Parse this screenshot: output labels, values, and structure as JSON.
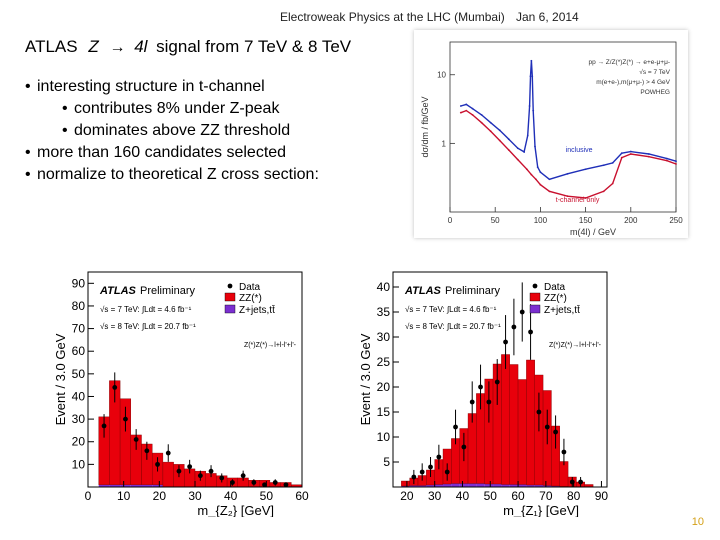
{
  "header": {
    "talk": "Electroweak Physics at the LHC (Mumbai)",
    "date": "Jan 6, 2014"
  },
  "title": {
    "prefix": "ATLAS",
    "z": "Z",
    "arrow": "→",
    "fourl": "4l",
    "suffix": "signal from 7 TeV & 8 TeV"
  },
  "bullets": [
    {
      "level": 1,
      "text": "interesting structure in t-channel"
    },
    {
      "level": 2,
      "text": "contributes 8% under Z-peak"
    },
    {
      "level": 2,
      "text": "dominates above ZZ threshold"
    },
    {
      "level": 1,
      "text": "more than 160 candidates selected"
    },
    {
      "level": 1,
      "text": "normalize to theoretical Z cross section:"
    }
  ],
  "page_number": "10",
  "chart_data": [
    {
      "type": "line",
      "xlabel": "m(4l) / GeV",
      "ylabel": "dσ/dm / fb/GeV",
      "xlim": [
        0,
        250
      ],
      "ylim_log": [
        0.1,
        30
      ],
      "x_ticks": [
        "0",
        "50",
        "100",
        "150",
        "200",
        "250"
      ],
      "y_ticks": [
        "10",
        "1"
      ],
      "legend": [
        "pp → Z/Z(*)Z(*) → e+e-μ+μ-",
        "√s = 7 TeV",
        "m(e+e-),m(μ+μ-) > 4 GeV",
        "POWHEG"
      ],
      "annotations": [
        "inclusive",
        "t-channel only"
      ],
      "series": [
        {
          "name": "inclusive",
          "color": "#1f2fb8",
          "x": [
            12,
            18,
            25,
            35,
            45,
            55,
            65,
            75,
            82,
            86,
            88,
            89,
            90,
            91,
            92,
            94,
            97,
            100,
            110,
            130,
            150,
            170,
            180,
            190,
            200,
            220,
            240,
            250
          ],
          "y": [
            3.5,
            3.7,
            3.2,
            2.6,
            2.0,
            1.55,
            1.15,
            0.85,
            0.75,
            1.3,
            3.5,
            9.5,
            16,
            9.5,
            3,
            0.9,
            0.45,
            0.38,
            0.3,
            0.36,
            0.42,
            0.48,
            0.52,
            0.72,
            0.76,
            0.7,
            0.6,
            0.55
          ]
        },
        {
          "name": "t-channel only",
          "color": "#c8102e",
          "x": [
            12,
            18,
            25,
            35,
            45,
            55,
            65,
            75,
            85,
            90,
            95,
            100,
            110,
            130,
            150,
            170,
            180,
            190,
            200,
            220,
            240,
            250
          ],
          "y": [
            2.8,
            3.0,
            2.6,
            2.0,
            1.5,
            1.1,
            0.8,
            0.58,
            0.42,
            0.35,
            0.3,
            0.25,
            0.2,
            0.17,
            0.16,
            0.2,
            0.26,
            0.62,
            0.7,
            0.64,
            0.56,
            0.5
          ]
        }
      ]
    },
    {
      "type": "bar",
      "title": "ATLAS Preliminary",
      "xlabel": "m_{Z₂} [GeV]",
      "ylabel": "Event / 3.0 GeV",
      "xlim": [
        0,
        60
      ],
      "ylim": [
        0,
        95
      ],
      "x_ticks": [
        "0",
        "10",
        "20",
        "30",
        "40",
        "50",
        "60"
      ],
      "y_ticks": [
        "10",
        "20",
        "30",
        "40",
        "50",
        "60",
        "70",
        "80",
        "90"
      ],
      "legend": [
        "Data",
        "ZZ(*)",
        "Z+jets,tt̄"
      ],
      "labels": [
        "√s = 7 TeV: ∫Ldt = 4.6 fb⁻¹",
        "√s = 8 TeV: ∫Ldt = 20.7 fb⁻¹",
        "Z(*)Z(*)→l+l-l'+l'-"
      ],
      "colors": {
        "zz": "#e8000b",
        "zjets": "#7b2fd0",
        "data": "#000000"
      },
      "bin_edges": [
        3,
        6,
        9,
        12,
        15,
        18,
        21,
        24,
        27,
        30,
        33,
        36,
        39,
        42,
        45,
        48,
        51,
        54,
        57,
        60
      ],
      "zz": [
        30,
        46,
        38,
        22,
        18,
        14,
        11,
        10,
        8,
        7,
        6,
        5,
        4,
        4,
        3,
        3,
        2,
        2,
        1
      ],
      "zjets": [
        1,
        1,
        1,
        1,
        1,
        1,
        0,
        0,
        0,
        0,
        0,
        0,
        0,
        0,
        0,
        0,
        0,
        0,
        0
      ],
      "data": [
        {
          "x": 4.5,
          "y": 27
        },
        {
          "x": 7.5,
          "y": 44
        },
        {
          "x": 10.5,
          "y": 30
        },
        {
          "x": 13.5,
          "y": 21
        },
        {
          "x": 16.5,
          "y": 16
        },
        {
          "x": 19.5,
          "y": 10
        },
        {
          "x": 22.5,
          "y": 15
        },
        {
          "x": 25.5,
          "y": 7
        },
        {
          "x": 28.5,
          "y": 9
        },
        {
          "x": 31.5,
          "y": 5
        },
        {
          "x": 34.5,
          "y": 7
        },
        {
          "x": 37.5,
          "y": 4
        },
        {
          "x": 40.5,
          "y": 2
        },
        {
          "x": 43.5,
          "y": 5
        },
        {
          "x": 46.5,
          "y": 2
        },
        {
          "x": 49.5,
          "y": 1
        },
        {
          "x": 52.5,
          "y": 2
        },
        {
          "x": 55.5,
          "y": 1
        }
      ]
    },
    {
      "type": "bar",
      "title": "ATLAS Preliminary",
      "xlabel": "m_{Z₁} [GeV]",
      "ylabel": "Event / 3.0 GeV",
      "xlim": [
        15,
        92
      ],
      "ylim": [
        0,
        43
      ],
      "x_ticks": [
        "20",
        "30",
        "40",
        "50",
        "60",
        "70",
        "80",
        "90"
      ],
      "y_ticks": [
        "5",
        "10",
        "15",
        "20",
        "25",
        "30",
        "35",
        "40"
      ],
      "legend": [
        "Data",
        "ZZ(*)",
        "Z+jets,tt̄"
      ],
      "labels": [
        "√s = 7 TeV: ∫Ldt = 4.6 fb⁻¹",
        "√s = 8 TeV: ∫Ldt = 20.7 fb⁻¹",
        "Z(*)Z(*)→l+l-l'+l'-"
      ],
      "colors": {
        "zz": "#e8000b",
        "zjets": "#7b2fd0",
        "data": "#000000"
      },
      "bin_edges": [
        18,
        21,
        24,
        27,
        30,
        33,
        36,
        39,
        42,
        45,
        48,
        51,
        54,
        57,
        60,
        63,
        66,
        69,
        72,
        75,
        78,
        81,
        84,
        87
      ],
      "zz": [
        1,
        1.5,
        2,
        3,
        5,
        7,
        9,
        11,
        14,
        18,
        21,
        24,
        26,
        24,
        21,
        25,
        22,
        19,
        12,
        5,
        2,
        1,
        0.5
      ],
      "zjets": [
        0.2,
        0.3,
        0.3,
        0.4,
        0.5,
        0.6,
        0.7,
        0.7,
        0.7,
        0.7,
        0.6,
        0.6,
        0.5,
        0.5,
        0.5,
        0.4,
        0.4,
        0.3,
        0.2,
        0.1,
        0,
        0,
        0
      ],
      "data": [
        {
          "x": 22.5,
          "y": 2
        },
        {
          "x": 25.5,
          "y": 3
        },
        {
          "x": 28.5,
          "y": 4
        },
        {
          "x": 31.5,
          "y": 6
        },
        {
          "x": 34.5,
          "y": 3
        },
        {
          "x": 37.5,
          "y": 12
        },
        {
          "x": 40.5,
          "y": 8
        },
        {
          "x": 43.5,
          "y": 17
        },
        {
          "x": 46.5,
          "y": 20
        },
        {
          "x": 49.5,
          "y": 17
        },
        {
          "x": 52.5,
          "y": 21
        },
        {
          "x": 55.5,
          "y": 29
        },
        {
          "x": 58.5,
          "y": 32
        },
        {
          "x": 61.5,
          "y": 35
        },
        {
          "x": 64.5,
          "y": 31
        },
        {
          "x": 67.5,
          "y": 15
        },
        {
          "x": 70.5,
          "y": 12
        },
        {
          "x": 73.5,
          "y": 11
        },
        {
          "x": 76.5,
          "y": 7
        },
        {
          "x": 79.5,
          "y": 1
        },
        {
          "x": 82.5,
          "y": 1
        }
      ]
    }
  ]
}
